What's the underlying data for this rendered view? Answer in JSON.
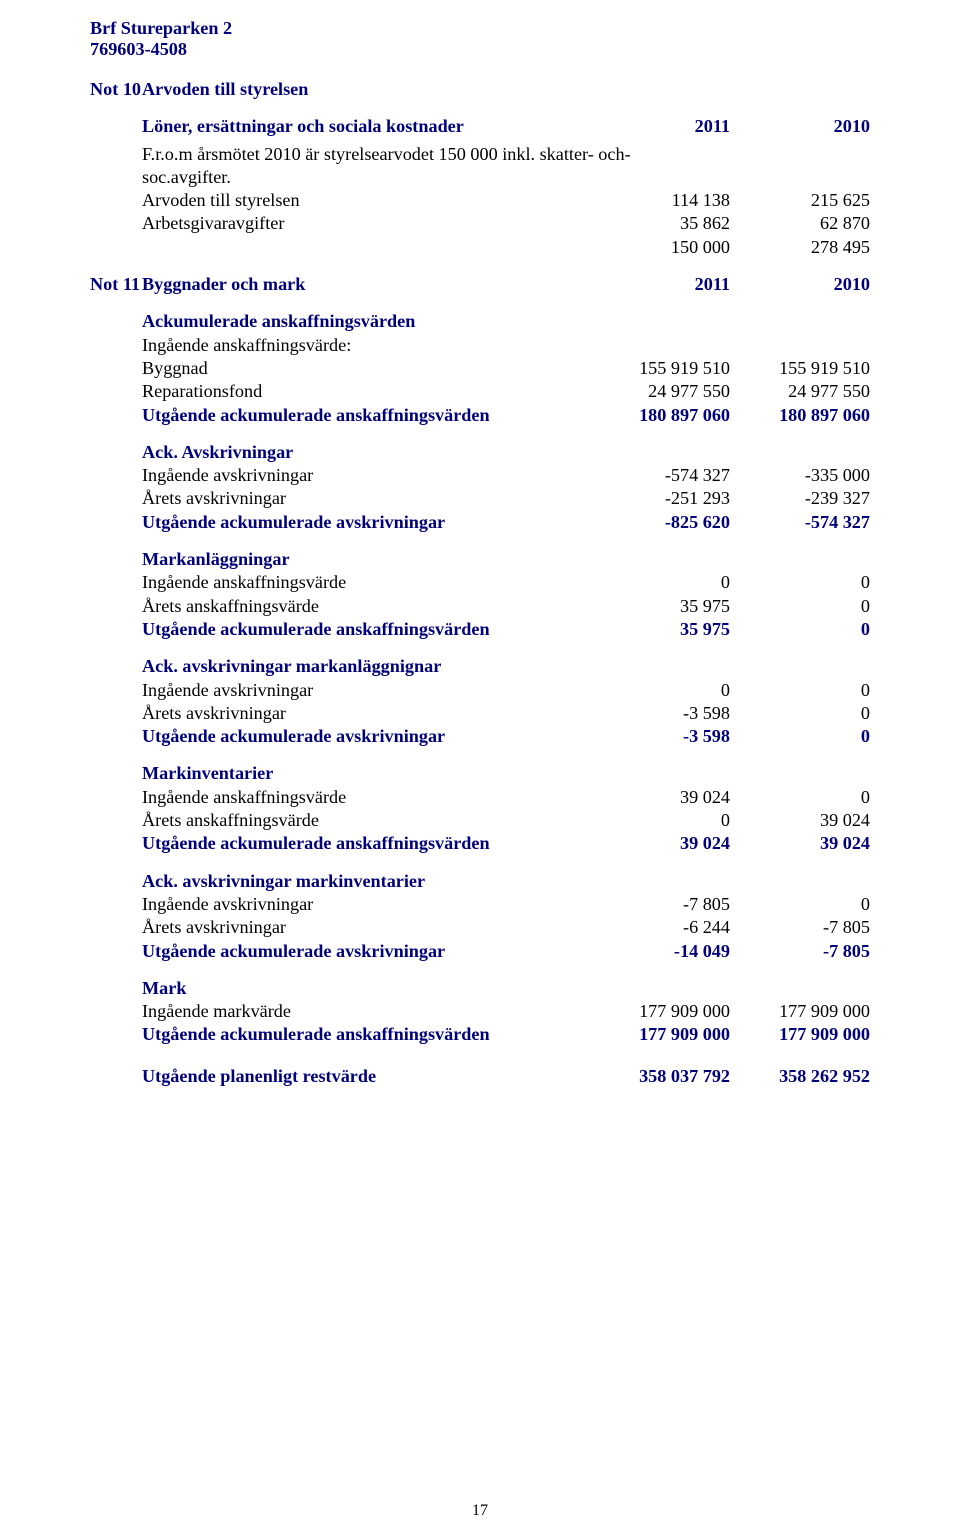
{
  "header": {
    "org_name": "Brf Stureparken 2",
    "org_no": "769603-4508"
  },
  "notes": {
    "n10": {
      "prefix": "Not 10",
      "title": "Arvoden till styrelsen",
      "subhead": {
        "label": "Löner, ersättningar och sociala kostnader",
        "c1": "2011",
        "c2": "2010"
      },
      "comment": "F.r.o.m årsmötet 2010 är styrelsearvodet 150 000 inkl. skatter- och- soc.avgifter.",
      "rows": [
        {
          "label": "Arvoden till styrelsen",
          "c1": "114 138",
          "c2": "215 625"
        },
        {
          "label": "Arbetsgivaravgifter",
          "c1": "35 862",
          "c2": "62 870"
        }
      ],
      "total": {
        "label": "",
        "c1": "150 000",
        "c2": "278 495"
      }
    },
    "n11": {
      "prefix": "Not 11",
      "title": "Byggnader och mark",
      "head_c1": "2011",
      "head_c2": "2010",
      "sec1": {
        "title": "Ackumulerade anskaffningsvärden",
        "sub": "Ingående anskaffningsvärde:",
        "rows": [
          {
            "label": "Byggnad",
            "c1": "155 919 510",
            "c2": "155 919 510"
          },
          {
            "label": "Reparationsfond",
            "c1": "24 977 550",
            "c2": "24 977 550"
          }
        ],
        "total": {
          "label": "Utgående ackumulerade anskaffningsvärden",
          "c1": "180 897 060",
          "c2": "180 897 060"
        }
      },
      "sec2": {
        "title": "Ack. Avskrivningar",
        "rows": [
          {
            "label": "Ingående avskrivningar",
            "c1": "-574 327",
            "c2": "-335 000"
          },
          {
            "label": "Årets avskrivningar",
            "c1": "-251 293",
            "c2": "-239 327"
          }
        ],
        "total": {
          "label": "Utgående ackumulerade avskrivningar",
          "c1": "-825 620",
          "c2": "-574 327"
        }
      },
      "sec3": {
        "title": "Markanläggningar",
        "rows": [
          {
            "label": "Ingående anskaffningsvärde",
            "c1": "0",
            "c2": "0"
          },
          {
            "label": "Årets anskaffningsvärde",
            "c1": "35 975",
            "c2": "0"
          }
        ],
        "total": {
          "label": "Utgående ackumulerade anskaffningsvärden",
          "c1": "35 975",
          "c2": "0"
        }
      },
      "sec4": {
        "title": "Ack. avskrivningar markanläggnignar",
        "rows": [
          {
            "label": "Ingående avskrivningar",
            "c1": "0",
            "c2": "0"
          },
          {
            "label": "Årets avskrivningar",
            "c1": "-3 598",
            "c2": "0"
          }
        ],
        "total": {
          "label": "Utgående ackumulerade avskrivningar",
          "c1": "-3 598",
          "c2": "0"
        }
      },
      "sec5": {
        "title": "Markinventarier",
        "rows": [
          {
            "label": "Ingående anskaffningsvärde",
            "c1": "39 024",
            "c2": "0"
          },
          {
            "label": "Årets anskaffningsvärde",
            "c1": "0",
            "c2": "39 024"
          }
        ],
        "total": {
          "label": "Utgående ackumulerade anskaffningsvärden",
          "c1": "39 024",
          "c2": "39 024"
        }
      },
      "sec6": {
        "title": "Ack. avskrivningar markinventarier",
        "rows": [
          {
            "label": "Ingående avskrivningar",
            "c1": "-7 805",
            "c2": "0"
          },
          {
            "label": "Årets avskrivningar",
            "c1": "-6 244",
            "c2": "-7 805"
          }
        ],
        "total": {
          "label": "Utgående ackumulerade avskrivningar",
          "c1": "-14 049",
          "c2": "-7 805"
        }
      },
      "sec7": {
        "title": "Mark",
        "rows": [
          {
            "label": "Ingående markvärde",
            "c1": "177 909 000",
            "c2": "177 909 000"
          }
        ],
        "total": {
          "label": "Utgående ackumulerade anskaffningsvärden",
          "c1": "177 909 000",
          "c2": "177 909 000"
        }
      },
      "final": {
        "label": "Utgående planenligt restvärde",
        "c1": "358 037 792",
        "c2": "358 262 952"
      }
    }
  },
  "page_number": "17",
  "colors": {
    "text": "#000000",
    "heading": "#00007a",
    "background": "#ffffff"
  },
  "typography": {
    "font_family": "Times New Roman",
    "base_size_pt": 13
  }
}
